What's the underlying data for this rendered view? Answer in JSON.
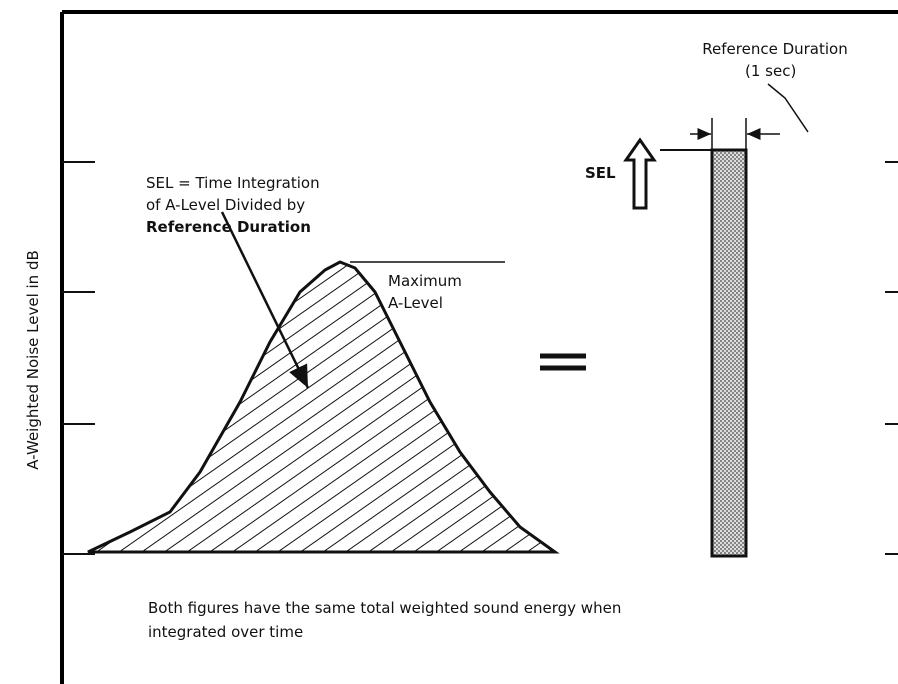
{
  "y_axis_label": "A-Weighted Noise Level in dB",
  "sel_annotation": [
    "SEL = Time Integration",
    "of A-Level Divided by",
    "Reference Duration"
  ],
  "maximum_annotation": [
    "Maximum",
    "A-Level"
  ],
  "reference_duration": "Reference Duration",
  "reference_value": "(1 sec)",
  "sel_label": "SEL",
  "caption": [
    "Both figures have the same total weighted sound energy when",
    "integrated over time"
  ]
}
